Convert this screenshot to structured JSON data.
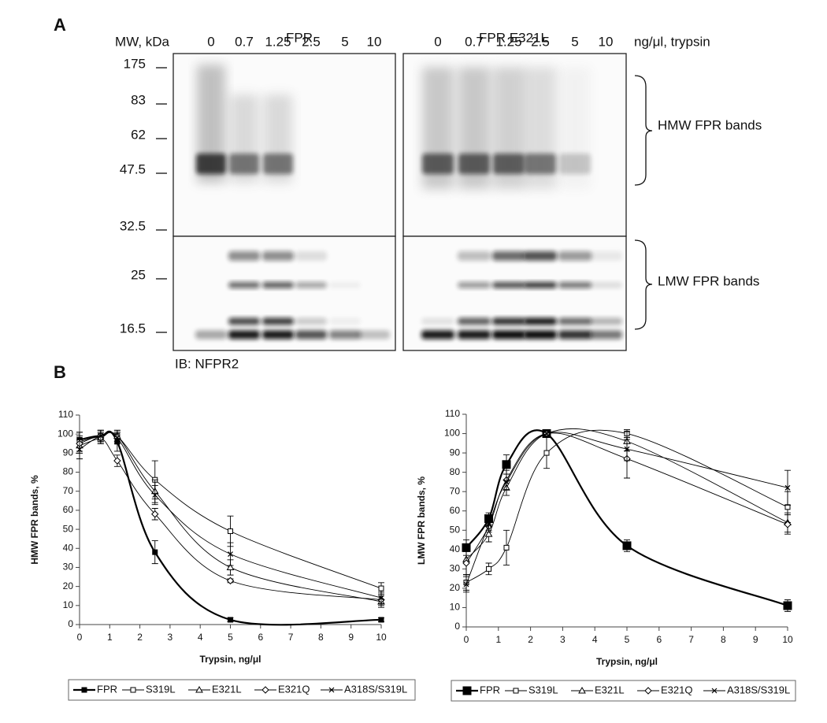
{
  "panel_a": {
    "label": "A",
    "columns": [
      "FPR",
      "FPR E321L"
    ],
    "mw_header": "MW, kDa",
    "lanes": [
      "0",
      "0.7",
      "1.25",
      "2.5",
      "5",
      "10"
    ],
    "unit": "ng/μl, trypsin",
    "mw_markers": [
      "175",
      "83",
      "62",
      "47.5",
      "32.5",
      "25",
      "16.5"
    ],
    "hmw_label": "HMW FPR bands",
    "lmw_label": "LMW FPR bands",
    "antibody": "IB: NFPR2"
  },
  "panel_b": {
    "label": "B"
  },
  "chart_data": [
    {
      "type": "line",
      "y_label": "HMW FPR bands, %",
      "x_label": "Trypsin, ng/μl",
      "xlim": [
        0,
        10
      ],
      "xticks": [
        0,
        1,
        2,
        3,
        4,
        5,
        6,
        7,
        8,
        9,
        10
      ],
      "ylim": [
        0,
        110
      ],
      "yticks": [
        0,
        10,
        20,
        30,
        40,
        50,
        60,
        70,
        80,
        90,
        100,
        110
      ],
      "x": [
        0,
        0.7,
        1.25,
        2.5,
        5,
        10
      ],
      "legend": "bottom",
      "series": [
        {
          "name": "FPR",
          "color": "#000000",
          "line_width": 2.2,
          "marker": "filled-square",
          "values": [
            97,
            99,
            96,
            38,
            2.5,
            2.5
          ],
          "errors": [
            4,
            3,
            5,
            6,
            1,
            1
          ]
        },
        {
          "name": "S319L",
          "color": "#000000",
          "line_width": 0.9,
          "marker": "open-square",
          "values": [
            96,
            99,
            99,
            76,
            49,
            19
          ],
          "errors": [
            5,
            3,
            3,
            10,
            8,
            3
          ]
        },
        {
          "name": "E321L",
          "color": "#000000",
          "line_width": 0.9,
          "marker": "open-triangle",
          "values": [
            94,
            98,
            99,
            70,
            30,
            12
          ],
          "errors": [
            4,
            3,
            3,
            6,
            4,
            3
          ]
        },
        {
          "name": "E321Q",
          "color": "#000000",
          "line_width": 0.9,
          "marker": "open-diamond",
          "values": [
            95,
            98,
            86,
            58,
            23,
            13
          ],
          "errors": [
            4,
            3,
            3,
            3,
            1,
            3
          ]
        },
        {
          "name": "A318S/S319L",
          "color": "#000000",
          "line_width": 0.9,
          "marker": "cross",
          "values": [
            92,
            99,
            98,
            68,
            37,
            14
          ],
          "errors": [
            5,
            3,
            3,
            5,
            6,
            3
          ]
        }
      ]
    },
    {
      "type": "line",
      "y_label": "LMW FPR bands, %",
      "x_label": "Trypsin, ng/μl",
      "xlim": [
        0,
        10
      ],
      "xticks": [
        0,
        1,
        2,
        3,
        4,
        5,
        6,
        7,
        8,
        9,
        10
      ],
      "ylim": [
        0,
        110
      ],
      "yticks": [
        0,
        10,
        20,
        30,
        40,
        50,
        60,
        70,
        80,
        90,
        100,
        110
      ],
      "x": [
        0,
        0.7,
        1.25,
        2.5,
        5,
        10
      ],
      "legend": "bottom",
      "series": [
        {
          "name": "FPR",
          "color": "#000000",
          "line_width": 2.2,
          "marker": "filled-square",
          "values": [
            41,
            56,
            84,
            100,
            42,
            11
          ],
          "errors": [
            4,
            3,
            5,
            2,
            3,
            3
          ]
        },
        {
          "name": "S319L",
          "color": "#000000",
          "line_width": 0.9,
          "marker": "open-square",
          "values": [
            23,
            30,
            41,
            90,
            100,
            62
          ],
          "errors": [
            4,
            3,
            9,
            8,
            2,
            8
          ]
        },
        {
          "name": "E321L",
          "color": "#000000",
          "line_width": 0.9,
          "marker": "open-triangle",
          "values": [
            35,
            48,
            72,
            100,
            96,
            54
          ],
          "errors": [
            8,
            4,
            4,
            2,
            5,
            5
          ]
        },
        {
          "name": "E321Q",
          "color": "#000000",
          "line_width": 0.9,
          "marker": "open-diamond",
          "values": [
            33,
            52,
            76,
            100,
            87,
            53
          ],
          "errors": [
            6,
            3,
            5,
            2,
            10,
            5
          ]
        },
        {
          "name": "A318S/S319L",
          "color": "#000000",
          "line_width": 0.9,
          "marker": "cross",
          "values": [
            22,
            53,
            75,
            100,
            92,
            72
          ],
          "errors": [
            4,
            3,
            4,
            2,
            6,
            9
          ]
        }
      ]
    }
  ]
}
